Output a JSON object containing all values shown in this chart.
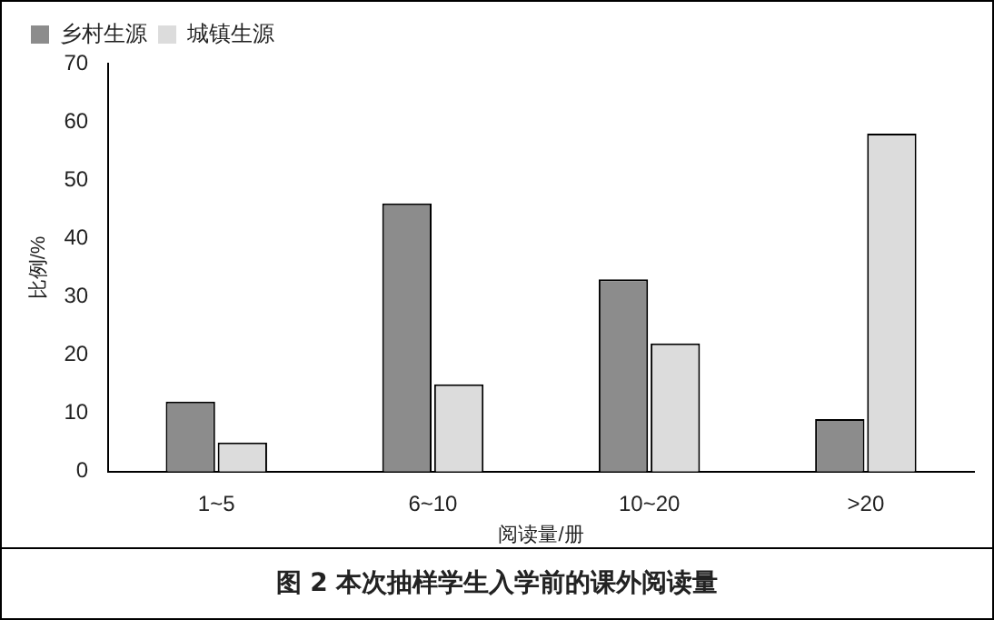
{
  "chart_data": {
    "type": "bar",
    "categories": [
      "1~5",
      "6~10",
      "10~20",
      ">20"
    ],
    "series": [
      {
        "name": "乡村生源",
        "color": "#8c8c8c",
        "values": [
          12,
          46,
          33,
          9
        ]
      },
      {
        "name": "城镇生源",
        "color": "#dcdcdc",
        "values": [
          5,
          15,
          22,
          58
        ]
      }
    ],
    "xlabel": "阅读量/册",
    "ylabel": "比例/%",
    "ylim": [
      0,
      70
    ],
    "yticks": [
      0,
      10,
      20,
      30,
      40,
      50,
      60,
      70
    ],
    "grid": false,
    "legend": "top left",
    "annotations": [
      "图 2  本次抽样学生入学前的课外阅读量"
    ]
  }
}
